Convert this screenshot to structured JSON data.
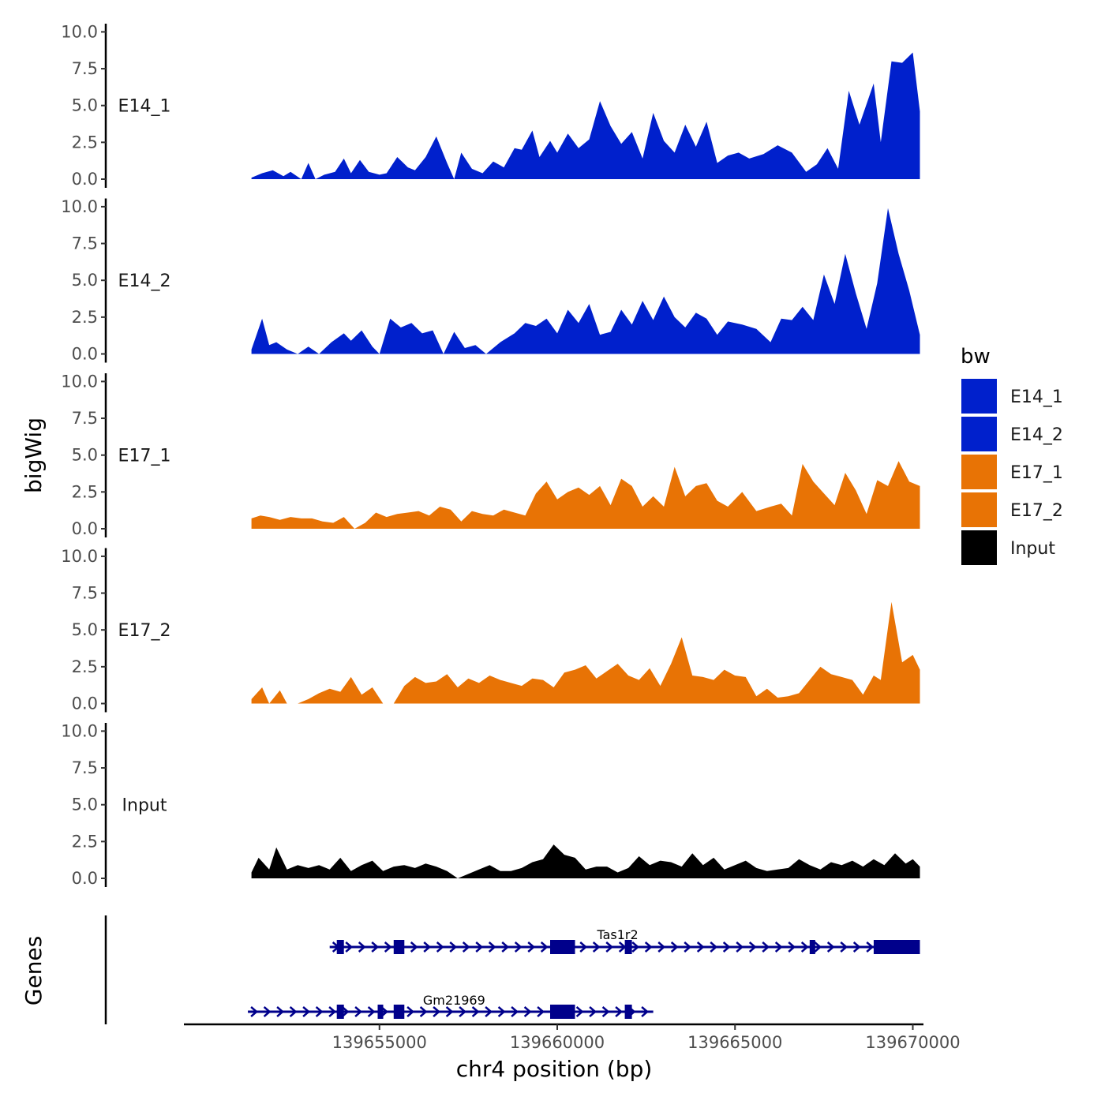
{
  "chart_data": {
    "type": "area",
    "chromosome": "chr4",
    "xlabel": "chr4 position (bp)",
    "ylabel": "bigWig",
    "genes_label": "Genes",
    "xlim": [
      139649500,
      139670300
    ],
    "x_ticks": [
      139655000,
      139660000,
      139665000,
      139670000
    ],
    "x_tick_labels": [
      "139655000",
      "139660000",
      "139665000",
      "139670000"
    ],
    "ylim": [
      0,
      10
    ],
    "y_ticks": [
      0,
      2.5,
      5,
      7.5,
      10
    ],
    "y_tick_labels": [
      "0.0",
      "2.5",
      "5.0",
      "7.5",
      "10.0"
    ],
    "legend": {
      "title": "bw",
      "position": "right",
      "entries": [
        {
          "label": "E14_1",
          "color": "#0020CC"
        },
        {
          "label": "E14_2",
          "color": "#0020CC"
        },
        {
          "label": "E17_1",
          "color": "#E87305"
        },
        {
          "label": "E17_2",
          "color": "#E87305"
        },
        {
          "label": "Input",
          "color": "#000000"
        }
      ]
    },
    "series": [
      {
        "name": "E14_1",
        "color": "#0020CC",
        "x": [
          139651400,
          139651700,
          139652000,
          139652300,
          139652500,
          139652800,
          139653000,
          139653200,
          139653450,
          139653750,
          139654000,
          139654200,
          139654450,
          139654700,
          139655000,
          139655200,
          139655500,
          139655800,
          139656000,
          139656300,
          139656600,
          139656900,
          139657100,
          139657300,
          139657600,
          139657900,
          139658200,
          139658500,
          139658800,
          139659000,
          139659300,
          139659500,
          139659800,
          139660000,
          139660300,
          139660600,
          139660900,
          139661200,
          139661500,
          139661800,
          139662100,
          139662400,
          139662700,
          139663000,
          139663300,
          139663600,
          139663900,
          139664200,
          139664500,
          139664800,
          139665100,
          139665400,
          139665800,
          139666200,
          139666600,
          139667000,
          139667300,
          139667600,
          139667900,
          139668200,
          139668500,
          139668900,
          139669100,
          139669400,
          139669700,
          139670000,
          139670200
        ],
        "values": [
          0.1,
          0.4,
          0.6,
          0.2,
          0.5,
          0.0,
          1.1,
          0.0,
          0.3,
          0.5,
          1.4,
          0.4,
          1.3,
          0.5,
          0.3,
          0.4,
          1.5,
          0.8,
          0.6,
          1.5,
          2.9,
          1.1,
          0.0,
          1.8,
          0.7,
          0.4,
          1.2,
          0.8,
          2.1,
          2.0,
          3.3,
          1.5,
          2.6,
          1.8,
          3.1,
          2.1,
          2.7,
          5.3,
          3.6,
          2.4,
          3.2,
          1.4,
          4.5,
          2.6,
          1.8,
          3.7,
          2.2,
          3.9,
          1.1,
          1.6,
          1.8,
          1.4,
          1.7,
          2.3,
          1.8,
          0.5,
          1.0,
          2.1,
          0.7,
          6.0,
          3.7,
          6.5,
          2.5,
          8.0,
          7.9,
          8.6,
          4.6
        ]
      },
      {
        "name": "E14_2",
        "color": "#0020CC",
        "x": [
          139651400,
          139651700,
          139651900,
          139652100,
          139652400,
          139652700,
          139653000,
          139653300,
          139653650,
          139654000,
          139654200,
          139654500,
          139654800,
          139655000,
          139655300,
          139655600,
          139655900,
          139656200,
          139656500,
          139656800,
          139657100,
          139657400,
          139657700,
          139658000,
          139658400,
          139658800,
          139659100,
          139659400,
          139659700,
          139660000,
          139660300,
          139660600,
          139660900,
          139661200,
          139661500,
          139661800,
          139662100,
          139662400,
          139662700,
          139663000,
          139663300,
          139663600,
          139663900,
          139664200,
          139664500,
          139664800,
          139665200,
          139665600,
          139666000,
          139666300,
          139666600,
          139666900,
          139667200,
          139667500,
          139667800,
          139668100,
          139668400,
          139668700,
          139669000,
          139669300,
          139669600,
          139669900,
          139670200
        ],
        "values": [
          0.3,
          2.4,
          0.6,
          0.8,
          0.3,
          0.0,
          0.5,
          0.0,
          0.8,
          1.4,
          0.9,
          1.6,
          0.5,
          0.0,
          2.4,
          1.8,
          2.1,
          1.4,
          1.6,
          0.0,
          1.5,
          0.4,
          0.6,
          0.0,
          0.8,
          1.4,
          2.1,
          1.9,
          2.4,
          1.4,
          3.0,
          2.1,
          3.4,
          1.3,
          1.5,
          3.0,
          2.0,
          3.6,
          2.3,
          3.9,
          2.5,
          1.8,
          2.8,
          2.4,
          1.3,
          2.2,
          2.0,
          1.7,
          0.8,
          2.4,
          2.3,
          3.2,
          2.3,
          5.4,
          3.4,
          6.8,
          4.1,
          1.7,
          4.8,
          9.9,
          6.8,
          4.3,
          1.3
        ]
      },
      {
        "name": "E17_1",
        "color": "#E87305",
        "x": [
          139651400,
          139651650,
          139651900,
          139652200,
          139652500,
          139652800,
          139653100,
          139653400,
          139653700,
          139654000,
          139654300,
          139654600,
          139654900,
          139655200,
          139655500,
          139655800,
          139656100,
          139656400,
          139656700,
          139657000,
          139657300,
          139657600,
          139657900,
          139658200,
          139658500,
          139658800,
          139659100,
          139659400,
          139659700,
          139660000,
          139660300,
          139660600,
          139660900,
          139661200,
          139661500,
          139661800,
          139662100,
          139662400,
          139662700,
          139663000,
          139663300,
          139663600,
          139663900,
          139664200,
          139664500,
          139664800,
          139665200,
          139665600,
          139666000,
          139666300,
          139666600,
          139666900,
          139667200,
          139667500,
          139667800,
          139668100,
          139668400,
          139668700,
          139669000,
          139669300,
          139669600,
          139669900,
          139670200
        ],
        "values": [
          0.7,
          0.9,
          0.8,
          0.6,
          0.8,
          0.7,
          0.7,
          0.5,
          0.4,
          0.8,
          0.0,
          0.4,
          1.1,
          0.8,
          1.0,
          1.1,
          1.2,
          0.9,
          1.5,
          1.3,
          0.5,
          1.2,
          1.0,
          0.9,
          1.3,
          1.1,
          0.9,
          2.4,
          3.2,
          2.0,
          2.5,
          2.8,
          2.3,
          2.9,
          1.6,
          3.4,
          2.9,
          1.5,
          2.2,
          1.5,
          4.2,
          2.2,
          2.9,
          3.1,
          1.9,
          1.5,
          2.5,
          1.2,
          1.5,
          1.7,
          0.9,
          4.4,
          3.2,
          2.4,
          1.6,
          3.8,
          2.6,
          1.0,
          3.3,
          2.9,
          4.6,
          3.2,
          2.9
        ]
      },
      {
        "name": "E17_2",
        "color": "#E87305",
        "x": [
          139651400,
          139651700,
          139651900,
          139652200,
          139652400,
          139652700,
          139653000,
          139653300,
          139653600,
          139653900,
          139654200,
          139654500,
          139654800,
          139655100,
          139655400,
          139655700,
          139656000,
          139656300,
          139656600,
          139656900,
          139657200,
          139657500,
          139657800,
          139658100,
          139658400,
          139658700,
          139659000,
          139659300,
          139659600,
          139659900,
          139660200,
          139660500,
          139660800,
          139661100,
          139661400,
          139661700,
          139662000,
          139662300,
          139662600,
          139662900,
          139663200,
          139663500,
          139663800,
          139664100,
          139664400,
          139664700,
          139665000,
          139665300,
          139665600,
          139665900,
          139666200,
          139666500,
          139666800,
          139667100,
          139667400,
          139667700,
          139668000,
          139668300,
          139668600,
          139668900,
          139669100,
          139669400,
          139669700,
          139670000,
          139670200
        ],
        "values": [
          0.3,
          1.1,
          0.0,
          0.9,
          0.0,
          0.0,
          0.3,
          0.7,
          1.0,
          0.8,
          1.8,
          0.6,
          1.1,
          0.0,
          0.0,
          1.2,
          1.8,
          1.4,
          1.5,
          2.0,
          1.1,
          1.7,
          1.4,
          1.9,
          1.6,
          1.4,
          1.2,
          1.7,
          1.6,
          1.1,
          2.1,
          2.3,
          2.6,
          1.7,
          2.2,
          2.7,
          1.9,
          1.6,
          2.4,
          1.2,
          2.7,
          4.5,
          1.9,
          1.8,
          1.6,
          2.3,
          1.9,
          1.8,
          0.5,
          1.0,
          0.4,
          0.5,
          0.7,
          1.6,
          2.5,
          2.0,
          1.8,
          1.6,
          0.6,
          1.9,
          1.6,
          6.9,
          2.8,
          3.3,
          2.3
        ]
      },
      {
        "name": "Input",
        "color": "#000000",
        "x": [
          139651400,
          139651600,
          139651900,
          139652100,
          139652400,
          139652700,
          139653000,
          139653300,
          139653600,
          139653900,
          139654200,
          139654500,
          139654800,
          139655100,
          139655400,
          139655700,
          139656000,
          139656300,
          139656600,
          139656900,
          139657200,
          139657500,
          139657800,
          139658100,
          139658400,
          139658700,
          139659000,
          139659300,
          139659600,
          139659900,
          139660200,
          139660500,
          139660800,
          139661100,
          139661400,
          139661700,
          139662000,
          139662300,
          139662600,
          139662900,
          139663200,
          139663500,
          139663800,
          139664100,
          139664400,
          139664700,
          139665000,
          139665300,
          139665600,
          139665900,
          139666200,
          139666500,
          139666800,
          139667100,
          139667400,
          139667700,
          139668000,
          139668300,
          139668600,
          139668900,
          139669200,
          139669500,
          139669800,
          139670000,
          139670200
        ],
        "values": [
          0.4,
          1.4,
          0.6,
          2.1,
          0.6,
          0.9,
          0.7,
          0.9,
          0.6,
          1.4,
          0.5,
          0.9,
          1.2,
          0.5,
          0.8,
          0.9,
          0.7,
          1.0,
          0.8,
          0.5,
          0.0,
          0.3,
          0.6,
          0.9,
          0.5,
          0.5,
          0.7,
          1.1,
          1.3,
          2.3,
          1.6,
          1.4,
          0.6,
          0.8,
          0.8,
          0.4,
          0.7,
          1.5,
          0.9,
          1.2,
          1.1,
          0.8,
          1.7,
          0.9,
          1.4,
          0.6,
          0.9,
          1.2,
          0.7,
          0.5,
          0.6,
          0.7,
          1.3,
          0.9,
          0.6,
          1.1,
          0.9,
          1.2,
          0.8,
          1.3,
          0.9,
          1.7,
          1.0,
          1.3,
          0.8
        ]
      }
    ],
    "genes": [
      {
        "name": "Tas1r2",
        "strand": "+",
        "start": 139653600,
        "end": 139670200,
        "label_position": 139661700,
        "exons": [
          [
            139653800,
            139654000
          ],
          [
            139655400,
            139655700
          ],
          [
            139659800,
            139660500
          ],
          [
            139661900,
            139662100
          ],
          [
            139667100,
            139667200
          ],
          [
            139668900,
            139670200
          ]
        ]
      },
      {
        "name": "Gm21969",
        "strand": "+",
        "start": 139651300,
        "end": 139662700,
        "label_position": 139657100,
        "exons": [
          [
            139653800,
            139654000
          ],
          [
            139654950,
            139655100
          ],
          [
            139655400,
            139655700
          ],
          [
            139659800,
            139660500
          ],
          [
            139661900,
            139662100
          ]
        ]
      }
    ]
  }
}
